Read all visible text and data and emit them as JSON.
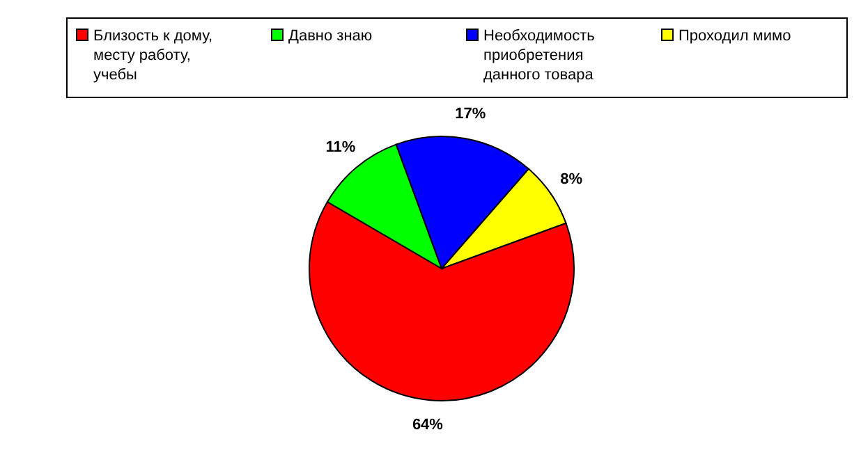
{
  "chart_data": {
    "type": "pie",
    "categories": [
      "Близость к дому, месту работу, учебы",
      "Давно знаю",
      "Необходимость приобретения данного товара",
      "Проходил мимо"
    ],
    "values": [
      64,
      11,
      17,
      8
    ],
    "colors": [
      "#ff0000",
      "#00ff00",
      "#0000ff",
      "#ffff00"
    ],
    "value_labels": [
      "64%",
      "11%",
      "17%",
      "8%"
    ],
    "legend": "top"
  }
}
